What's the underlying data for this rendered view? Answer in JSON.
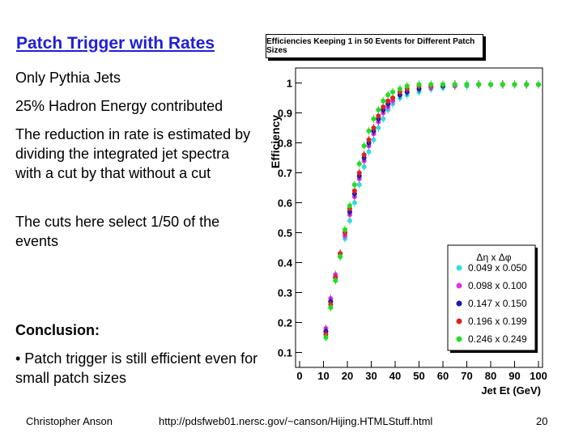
{
  "slide": {
    "title": "Patch Trigger with Rates",
    "paragraphs": [
      "Only Pythia Jets",
      "25% Hadron Energy contributed",
      "The reduction in rate is estimated by dividing the integrated jet spectra with a cut by that without a cut",
      "The cuts here select 1/50 of the events",
      "Conclusion:",
      "• Patch trigger is still efficient even for small patch sizes"
    ],
    "footer": {
      "author": "Christopher Anson",
      "url": "http://pdsfweb01.nersc.gov/~canson/Hijing.HTMLStuff.html",
      "page": "20"
    }
  },
  "chart_data": {
    "type": "scatter",
    "title": "Efficiencies Keeping 1 in 50 Events for Different Patch Sizes",
    "xlabel": "Jet Et (GeV)",
    "ylabel": "Efficiency",
    "xlim": [
      0,
      100
    ],
    "ylim": [
      0.05,
      1.05
    ],
    "xticks": [
      "0",
      "10",
      "20",
      "30",
      "40",
      "50",
      "60",
      "70",
      "80",
      "90",
      "100"
    ],
    "yticks": [
      "0.1",
      "0.2",
      "0.3",
      "0.4",
      "0.5",
      "0.6",
      "0.7",
      "0.8",
      "0.9",
      "1"
    ],
    "legend_header": "Δη x Δφ",
    "legend_position": "bottom-right",
    "series": [
      {
        "name": "0.049 x 0.050",
        "color": "#33dddd",
        "x": [
          11,
          13,
          15,
          17,
          19,
          21,
          23,
          25,
          27,
          29,
          31,
          33,
          35,
          37,
          39,
          42,
          45,
          50,
          55,
          60,
          65,
          70,
          75,
          80,
          85,
          90,
          95,
          100
        ],
        "y": [
          0.17,
          0.27,
          0.35,
          0.42,
          0.48,
          0.54,
          0.6,
          0.66,
          0.72,
          0.77,
          0.81,
          0.85,
          0.88,
          0.91,
          0.93,
          0.95,
          0.96,
          0.97,
          0.98,
          0.985,
          0.99,
          0.99,
          0.995,
          0.995,
          0.995,
          0.995,
          0.995,
          0.995
        ]
      },
      {
        "name": "0.098 x 0.100",
        "color": "#dd33dd",
        "x": [
          11,
          13,
          15,
          17,
          19,
          21,
          23,
          25,
          27,
          29,
          31,
          33,
          35,
          37,
          39,
          42,
          45,
          50,
          55,
          60,
          65,
          70,
          75,
          80,
          85,
          90,
          95,
          100
        ],
        "y": [
          0.18,
          0.28,
          0.36,
          0.43,
          0.49,
          0.56,
          0.62,
          0.68,
          0.74,
          0.79,
          0.83,
          0.87,
          0.9,
          0.92,
          0.94,
          0.96,
          0.97,
          0.98,
          0.985,
          0.99,
          0.99,
          0.995,
          0.995,
          0.995,
          0.995,
          0.995,
          0.995,
          0.995
        ]
      },
      {
        "name": "0.147 x 0.150",
        "color": "#1a1aa8",
        "x": [
          11,
          13,
          15,
          17,
          19,
          21,
          23,
          25,
          27,
          29,
          31,
          33,
          35,
          37,
          39,
          42,
          45,
          50,
          55,
          60,
          65,
          70,
          75,
          80,
          85,
          90,
          95,
          100
        ],
        "y": [
          0.17,
          0.27,
          0.35,
          0.43,
          0.5,
          0.57,
          0.63,
          0.69,
          0.75,
          0.8,
          0.84,
          0.88,
          0.91,
          0.93,
          0.95,
          0.96,
          0.97,
          0.98,
          0.99,
          0.99,
          0.995,
          0.995,
          0.995,
          0.995,
          0.995,
          0.995,
          0.995,
          0.995
        ]
      },
      {
        "name": "0.196 x 0.199",
        "color": "#dd2222",
        "x": [
          11,
          13,
          15,
          17,
          19,
          21,
          23,
          25,
          27,
          29,
          31,
          33,
          35,
          37,
          39,
          42,
          45,
          50,
          55,
          60,
          65,
          70,
          75,
          80,
          85,
          90,
          95,
          100
        ],
        "y": [
          0.16,
          0.26,
          0.35,
          0.43,
          0.5,
          0.58,
          0.64,
          0.7,
          0.76,
          0.81,
          0.85,
          0.89,
          0.92,
          0.94,
          0.95,
          0.97,
          0.98,
          0.99,
          0.99,
          0.995,
          0.995,
          0.995,
          0.995,
          0.995,
          0.995,
          0.995,
          0.995,
          0.995
        ]
      },
      {
        "name": "0.246 x 0.249",
        "color": "#22dd22",
        "x": [
          11,
          13,
          15,
          17,
          19,
          21,
          23,
          25,
          27,
          29,
          31,
          33,
          35,
          37,
          39,
          42,
          45,
          50,
          55,
          60,
          65,
          70,
          75,
          80,
          85,
          90,
          95,
          100
        ],
        "y": [
          0.15,
          0.25,
          0.34,
          0.42,
          0.51,
          0.59,
          0.66,
          0.73,
          0.79,
          0.84,
          0.88,
          0.91,
          0.94,
          0.96,
          0.97,
          0.98,
          0.99,
          0.995,
          0.995,
          0.995,
          0.995,
          0.995,
          0.995,
          0.995,
          0.995,
          0.995,
          0.995,
          0.995
        ]
      }
    ]
  }
}
